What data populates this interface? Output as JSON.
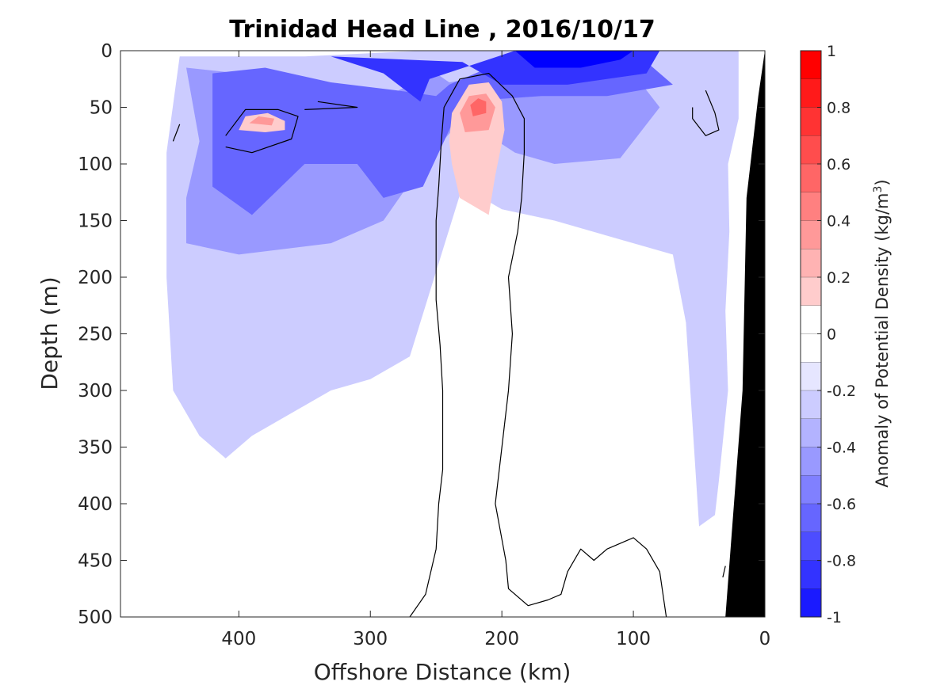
{
  "chart_data": {
    "type": "heatmap",
    "title": "Trinidad Head Line , 2016/10/17",
    "xlabel": "Offshore Distance (km)",
    "ylabel": "Depth (m)",
    "xlim": [
      490,
      0
    ],
    "ylim": [
      0,
      500
    ],
    "x_ticks": [
      "400",
      "300",
      "200",
      "100",
      "0"
    ],
    "y_ticks": [
      "0",
      "50",
      "100",
      "150",
      "200",
      "250",
      "300",
      "350",
      "400",
      "450",
      "500"
    ],
    "colorbar": {
      "label": "Anomaly of Potential Density (kg/m",
      "label_superscript": "3",
      "label_suffix": ")",
      "range": [
        -1,
        1
      ],
      "ticks": [
        "1",
        "0.8",
        "0.6",
        "0.4",
        "0.2",
        "0",
        "-0.2",
        "-0.4",
        "-0.6",
        "-0.8",
        "-1"
      ],
      "levels": [
        0.9,
        0.7,
        0.5,
        0.3,
        0.1,
        -0.1,
        -0.3,
        -0.5,
        -0.7,
        -0.9
      ],
      "colors": [
        "#ff0000",
        "#ff3333",
        "#ff6666",
        "#ff9999",
        "#ffcccc",
        "#ffffff",
        "#ccccff",
        "#9999ff",
        "#6666ff",
        "#3333ff",
        "#0000ff"
      ]
    },
    "colors": {
      "negative": "#0000ff",
      "positive": "#ff0000",
      "zero_contour": "#000000",
      "bathymetry": "#000000"
    },
    "features": [
      {
        "type": "negative",
        "level": -0.1,
        "points": [
          [
            445,
            5
          ],
          [
            350,
            5
          ],
          [
            260,
            0
          ],
          [
            175,
            0
          ],
          [
            110,
            0
          ],
          [
            40,
            0
          ],
          [
            20,
            0
          ],
          [
            20,
            60
          ],
          [
            28,
            100
          ],
          [
            27,
            160
          ],
          [
            30,
            230
          ],
          [
            28,
            300
          ],
          [
            35,
            380
          ],
          [
            38,
            410
          ],
          [
            50,
            420
          ],
          [
            60,
            240
          ],
          [
            70,
            180
          ],
          [
            100,
            170
          ],
          [
            160,
            150
          ],
          [
            200,
            140
          ],
          [
            230,
            120
          ],
          [
            270,
            270
          ],
          [
            300,
            290
          ],
          [
            330,
            300
          ],
          [
            390,
            340
          ],
          [
            410,
            360
          ],
          [
            430,
            340
          ],
          [
            450,
            300
          ],
          [
            455,
            200
          ],
          [
            455,
            90
          ]
        ]
      },
      {
        "type": "negative",
        "level": -0.3,
        "points": [
          [
            440,
            15
          ],
          [
            400,
            20
          ],
          [
            350,
            35
          ],
          [
            300,
            48
          ],
          [
            270,
            30
          ],
          [
            250,
            20
          ],
          [
            240,
            28
          ],
          [
            200,
            20
          ],
          [
            150,
            15
          ],
          [
            100,
            20
          ],
          [
            80,
            50
          ],
          [
            110,
            95
          ],
          [
            160,
            100
          ],
          [
            190,
            90
          ],
          [
            230,
            60
          ],
          [
            260,
            100
          ],
          [
            290,
            150
          ],
          [
            330,
            170
          ],
          [
            400,
            180
          ],
          [
            440,
            170
          ],
          [
            440,
            130
          ],
          [
            430,
            80
          ]
        ]
      },
      {
        "type": "negative",
        "level": -0.5,
        "points": [
          [
            420,
            20
          ],
          [
            380,
            15
          ],
          [
            330,
            28
          ],
          [
            280,
            35
          ],
          [
            250,
            40
          ],
          [
            240,
            30
          ],
          [
            200,
            10
          ],
          [
            140,
            8
          ],
          [
            90,
            10
          ],
          [
            70,
            30
          ],
          [
            120,
            40
          ],
          [
            170,
            40
          ],
          [
            230,
            45
          ],
          [
            260,
            120
          ],
          [
            290,
            130
          ],
          [
            310,
            100
          ],
          [
            350,
            100
          ],
          [
            390,
            145
          ],
          [
            420,
            120
          ]
        ]
      },
      {
        "type": "negative",
        "level": -0.7,
        "points": [
          [
            330,
            5
          ],
          [
            290,
            20
          ],
          [
            262,
            45
          ],
          [
            255,
            25
          ],
          [
            190,
            0
          ],
          [
            120,
            0
          ],
          [
            80,
            0
          ],
          [
            90,
            20
          ],
          [
            150,
            30
          ],
          [
            200,
            30
          ],
          [
            230,
            10
          ]
        ]
      },
      {
        "type": "negative",
        "level": -0.9,
        "points": [
          [
            190,
            0
          ],
          [
            175,
            15
          ],
          [
            140,
            15
          ],
          [
            110,
            8
          ],
          [
            100,
            0
          ]
        ]
      },
      {
        "type": "positive",
        "level": 0.1,
        "points": [
          [
            232,
            130
          ],
          [
            238,
            100
          ],
          [
            240,
            80
          ],
          [
            238,
            55
          ],
          [
            225,
            30
          ],
          [
            210,
            28
          ],
          [
            200,
            45
          ],
          [
            198,
            70
          ],
          [
            205,
            110
          ],
          [
            210,
            145
          ]
        ]
      },
      {
        "type": "positive",
        "level": 0.3,
        "points": [
          [
            228,
            72
          ],
          [
            232,
            55
          ],
          [
            225,
            40
          ],
          [
            212,
            38
          ],
          [
            205,
            50
          ],
          [
            210,
            70
          ]
        ]
      },
      {
        "type": "positive",
        "level": 0.5,
        "points": [
          [
            222,
            58
          ],
          [
            224,
            48
          ],
          [
            218,
            42
          ],
          [
            212,
            45
          ],
          [
            212,
            55
          ]
        ]
      },
      {
        "type": "positive",
        "level": 0.1,
        "points": [
          [
            400,
            70
          ],
          [
            395,
            58
          ],
          [
            378,
            55
          ],
          [
            365,
            62
          ],
          [
            365,
            70
          ],
          [
            380,
            72
          ]
        ]
      },
      {
        "type": "positive",
        "level": 0.3,
        "points": [
          [
            392,
            64
          ],
          [
            385,
            58
          ],
          [
            373,
            60
          ],
          [
            375,
            66
          ]
        ]
      }
    ],
    "zero_contours": [
      [
        [
          270,
          500
        ],
        [
          258,
          480
        ],
        [
          250,
          440
        ],
        [
          248,
          400
        ],
        [
          245,
          370
        ],
        [
          245,
          340
        ],
        [
          245,
          300
        ],
        [
          247,
          260
        ],
        [
          250,
          220
        ],
        [
          250,
          180
        ],
        [
          250,
          150
        ],
        [
          248,
          120
        ],
        [
          246,
          80
        ],
        [
          244,
          50
        ],
        [
          232,
          25
        ],
        [
          210,
          20
        ],
        [
          192,
          40
        ],
        [
          183,
          60
        ],
        [
          183,
          90
        ],
        [
          185,
          130
        ],
        [
          188,
          160
        ],
        [
          195,
          200
        ],
        [
          192,
          250
        ],
        [
          195,
          300
        ],
        [
          200,
          350
        ],
        [
          205,
          400
        ],
        [
          197,
          450
        ],
        [
          195,
          475
        ],
        [
          180,
          490
        ],
        [
          165,
          485
        ],
        [
          155,
          480
        ],
        [
          150,
          460
        ],
        [
          140,
          440
        ],
        [
          130,
          450
        ],
        [
          120,
          440
        ],
        [
          100,
          430
        ],
        [
          90,
          440
        ],
        [
          80,
          460
        ],
        [
          75,
          500
        ]
      ],
      [
        [
          410,
          75
        ],
        [
          395,
          52
        ],
        [
          370,
          52
        ],
        [
          355,
          58
        ],
        [
          360,
          78
        ],
        [
          390,
          90
        ],
        [
          410,
          85
        ]
      ],
      [
        [
          340,
          45
        ],
        [
          310,
          50
        ],
        [
          350,
          52
        ]
      ],
      [
        [
          45,
          35
        ],
        [
          38,
          55
        ],
        [
          35,
          70
        ],
        [
          45,
          75
        ],
        [
          55,
          60
        ],
        [
          55,
          50
        ]
      ],
      [
        [
          445,
          65
        ],
        [
          450,
          80
        ]
      ],
      [
        [
          30,
          455
        ],
        [
          32,
          465
        ]
      ]
    ],
    "bathymetry": [
      [
        0,
        0
      ],
      [
        0,
        500
      ],
      [
        30,
        500
      ],
      [
        17,
        300
      ],
      [
        14,
        130
      ],
      [
        5,
        40
      ]
    ]
  }
}
